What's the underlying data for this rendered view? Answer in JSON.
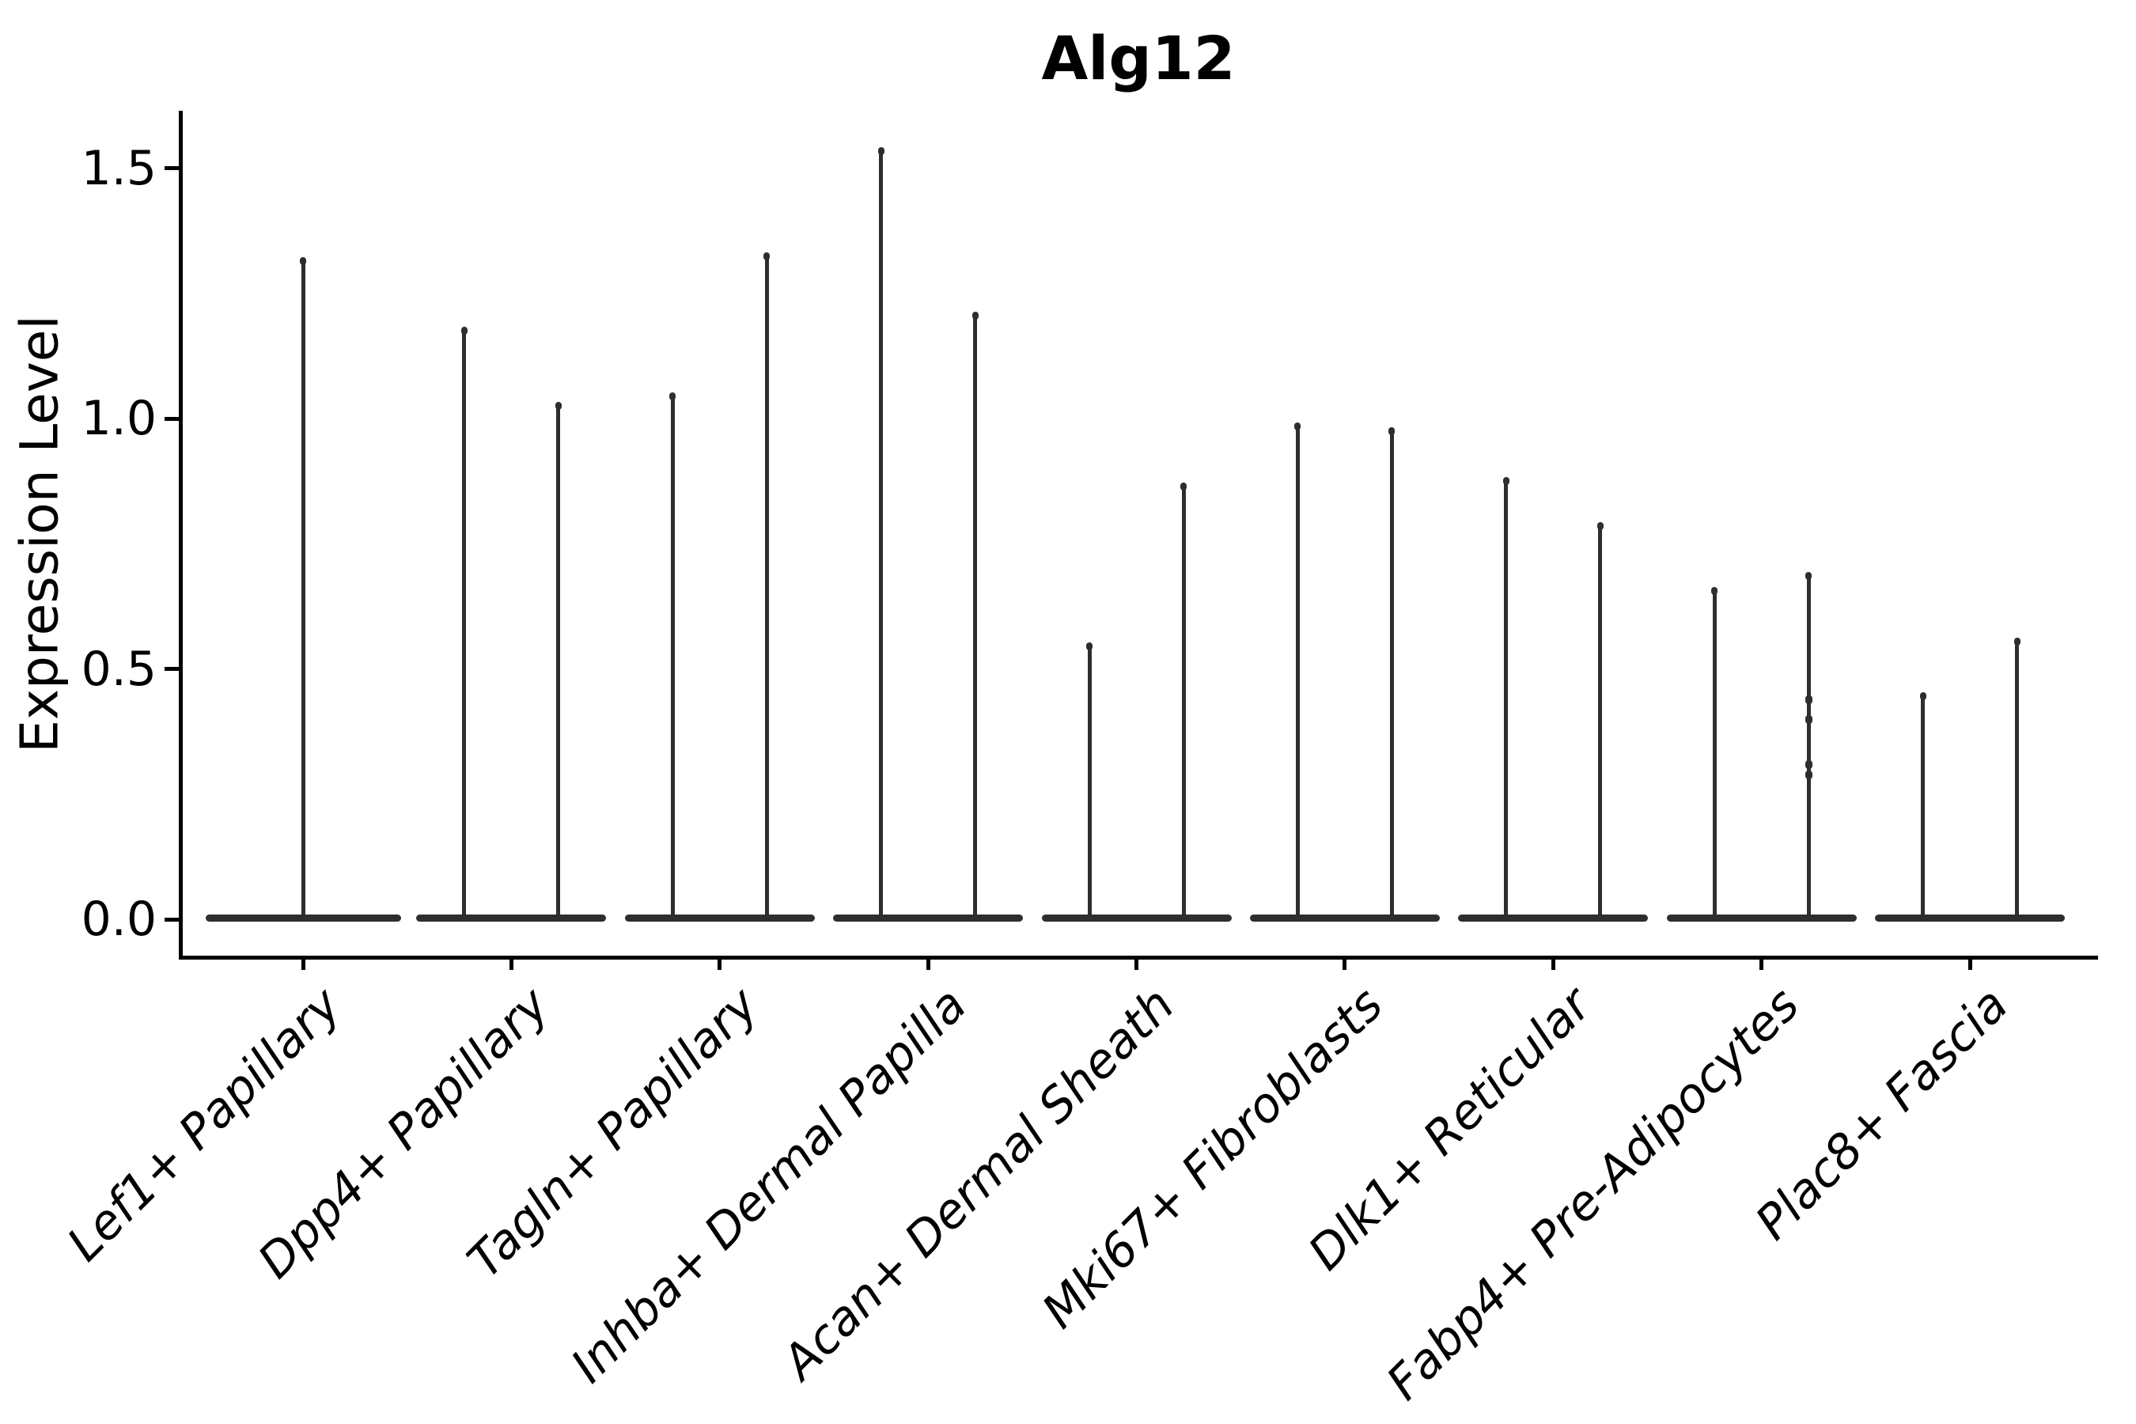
{
  "title": "Alg12",
  "ylabel": "Expression Level",
  "chart_data": {
    "type": "violin",
    "title": "Alg12",
    "xlabel": "",
    "ylabel": "Expression Level",
    "ylim": [
      -0.08,
      1.61
    ],
    "yticks": [
      0.0,
      0.5,
      1.0,
      1.5
    ],
    "ytick_labels": [
      "0.0",
      "0.5",
      "1.0",
      "1.5"
    ],
    "grid": false,
    "legend": "none",
    "categories": [
      "Lef1+ Papillary",
      "Dpp4+ Papillary",
      "Tagln+ Papillary",
      "Inhba+ Dermal Papilla",
      "Acan+ Dermal Sheath",
      "Mki67+ Fibroblasts",
      "Dlk1+ Reticular",
      "Fabp4+ Pre-Adipocytes",
      "Plac8+ Fascia"
    ],
    "description": "Each category shows flat violin bodies at expression 0 with thin tails; tail maxima listed per violin (1 or 2 violins per category).",
    "violins": [
      {
        "label": "Lef1+ Papillary",
        "maxima": [
          1.32
        ],
        "baseline": 0.0
      },
      {
        "label": "Dpp4+ Papillary",
        "maxima": [
          1.18,
          1.03
        ],
        "baseline": 0.0
      },
      {
        "label": "Tagln+ Papillary",
        "maxima": [
          1.05,
          1.33
        ],
        "baseline": 0.0
      },
      {
        "label": "Inhba+ Dermal Papilla",
        "maxima": [
          1.54,
          1.21
        ],
        "baseline": 0.0
      },
      {
        "label": "Acan+ Dermal Sheath",
        "maxima": [
          0.55,
          0.87
        ],
        "baseline": 0.0
      },
      {
        "label": "Mki67+ Fibroblasts",
        "maxima": [
          0.99,
          0.98
        ],
        "baseline": 0.0
      },
      {
        "label": "Dlk1+ Reticular",
        "maxima": [
          0.88,
          0.79
        ],
        "baseline": 0.0
      },
      {
        "label": "Fabp4+ Pre-Adipocytes",
        "maxima": [
          0.66,
          0.69
        ],
        "baseline": 0.0,
        "dots": [
          [
            1,
            0.44
          ],
          [
            1,
            0.4
          ],
          [
            1,
            0.31
          ],
          [
            1,
            0.29
          ]
        ]
      },
      {
        "label": "Plac8+ Fascia",
        "maxima": [
          0.45,
          0.56
        ],
        "baseline": 0.0
      }
    ],
    "colors": {
      "violin": "#2e2e2e",
      "axis": "#000000",
      "text": "#000000",
      "background": "#ffffff"
    }
  }
}
